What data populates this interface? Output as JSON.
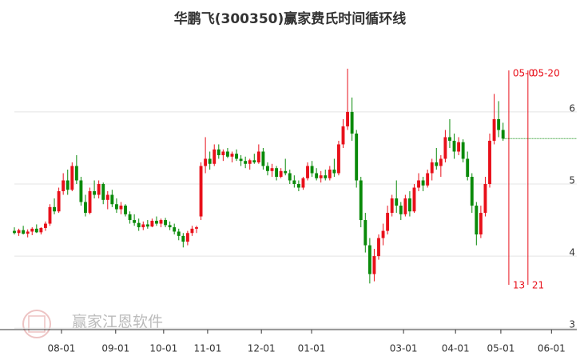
{
  "chart_data": {
    "type": "candlestick",
    "title": "华鹏飞(300350)赢家费氏时间循环线",
    "watermark": "赢家江恩软件",
    "up_color": "#e8101a",
    "down_color": "#0a8a0a",
    "ylim": [
      2.98,
      7.22
    ],
    "yticks": [
      3,
      4,
      5,
      6
    ],
    "xlim": [
      0,
      126.6
    ],
    "xticks": [
      {
        "value": 10.6,
        "label": "08-01"
      },
      {
        "value": 22.8,
        "label": "09-01"
      },
      {
        "value": 33.6,
        "label": "10-01"
      },
      {
        "value": 43.5,
        "label": "11-01"
      },
      {
        "value": 55.6,
        "label": "12-01"
      },
      {
        "value": 66.9,
        "label": "01-01"
      },
      {
        "value": 87.6,
        "label": "03-01"
      },
      {
        "value": 99.3,
        "label": "04-01"
      },
      {
        "value": 109.5,
        "label": "05-01"
      },
      {
        "value": 120.9,
        "label": "06-01"
      }
    ],
    "current_price": 5.63,
    "cycle_lines": [
      {
        "x": 111.3,
        "count": "13",
        "date": "05-0"
      },
      {
        "x": 115.6,
        "count": "21",
        "date": "05-20"
      }
    ],
    "ohlc": [
      [
        4.35,
        4.4,
        4.3,
        4.32
      ],
      [
        4.32,
        4.38,
        4.28,
        4.36
      ],
      [
        4.36,
        4.42,
        4.3,
        4.31
      ],
      [
        4.31,
        4.37,
        4.26,
        4.34
      ],
      [
        4.34,
        4.4,
        4.29,
        4.38
      ],
      [
        4.38,
        4.44,
        4.32,
        4.33
      ],
      [
        4.33,
        4.4,
        4.3,
        4.39
      ],
      [
        4.39,
        4.48,
        4.35,
        4.45
      ],
      [
        4.45,
        4.72,
        4.42,
        4.68
      ],
      [
        4.68,
        4.8,
        4.58,
        4.62
      ],
      [
        4.62,
        4.95,
        4.6,
        4.9
      ],
      [
        4.9,
        5.15,
        4.85,
        5.05
      ],
      [
        5.05,
        5.2,
        4.85,
        4.92
      ],
      [
        4.92,
        5.3,
        4.9,
        5.25
      ],
      [
        5.25,
        5.4,
        5.0,
        5.05
      ],
      [
        5.05,
        5.1,
        4.7,
        4.75
      ],
      [
        4.75,
        4.85,
        4.55,
        4.6
      ],
      [
        4.6,
        4.95,
        4.58,
        4.9
      ],
      [
        4.9,
        5.05,
        4.8,
        4.85
      ],
      [
        4.85,
        5.05,
        4.8,
        5.0
      ],
      [
        5.0,
        5.02,
        4.72,
        4.78
      ],
      [
        4.78,
        4.9,
        4.65,
        4.85
      ],
      [
        4.85,
        4.92,
        4.68,
        4.72
      ],
      [
        4.72,
        4.8,
        4.6,
        4.65
      ],
      [
        4.65,
        4.75,
        4.58,
        4.7
      ],
      [
        4.7,
        4.72,
        4.55,
        4.58
      ],
      [
        4.58,
        4.62,
        4.45,
        4.5
      ],
      [
        4.5,
        4.58,
        4.42,
        4.46
      ],
      [
        4.46,
        4.52,
        4.35,
        4.4
      ],
      [
        4.4,
        4.48,
        4.36,
        4.44
      ],
      [
        4.44,
        4.5,
        4.38,
        4.41
      ],
      [
        4.41,
        4.52,
        4.4,
        4.49
      ],
      [
        4.49,
        4.55,
        4.42,
        4.45
      ],
      [
        4.45,
        4.52,
        4.4,
        4.5
      ],
      [
        4.5,
        4.53,
        4.4,
        4.43
      ],
      [
        4.43,
        4.48,
        4.36,
        4.4
      ],
      [
        4.4,
        4.45,
        4.3,
        4.34
      ],
      [
        4.34,
        4.38,
        4.22,
        4.28
      ],
      [
        4.28,
        4.32,
        4.12,
        4.2
      ],
      [
        4.2,
        4.35,
        4.15,
        4.32
      ],
      [
        4.32,
        4.42,
        4.28,
        4.38
      ],
      [
        4.38,
        4.42,
        4.32,
        4.4
      ],
      [
        4.55,
        5.3,
        4.5,
        5.25
      ],
      [
        5.25,
        5.65,
        5.15,
        5.35
      ],
      [
        5.35,
        5.45,
        5.2,
        5.28
      ],
      [
        5.28,
        5.55,
        5.25,
        5.48
      ],
      [
        5.48,
        5.55,
        5.35,
        5.4
      ],
      [
        5.4,
        5.48,
        5.32,
        5.45
      ],
      [
        5.45,
        5.5,
        5.36,
        5.38
      ],
      [
        5.38,
        5.45,
        5.3,
        5.42
      ],
      [
        5.42,
        5.48,
        5.32,
        5.35
      ],
      [
        5.35,
        5.4,
        5.25,
        5.32
      ],
      [
        5.32,
        5.38,
        5.22,
        5.28
      ],
      [
        5.28,
        5.35,
        5.2,
        5.33
      ],
      [
        5.33,
        5.42,
        5.28,
        5.3
      ],
      [
        5.3,
        5.55,
        5.28,
        5.45
      ],
      [
        5.45,
        5.5,
        5.2,
        5.25
      ],
      [
        5.25,
        5.3,
        5.12,
        5.18
      ],
      [
        5.18,
        5.28,
        5.1,
        5.22
      ],
      [
        5.22,
        5.25,
        5.05,
        5.1
      ],
      [
        5.1,
        5.22,
        5.08,
        5.18
      ],
      [
        5.18,
        5.35,
        5.12,
        5.15
      ],
      [
        5.15,
        5.2,
        5.0,
        5.05
      ],
      [
        5.05,
        5.12,
        4.95,
        5.0
      ],
      [
        5.0,
        5.05,
        4.9,
        4.95
      ],
      [
        4.95,
        5.1,
        4.92,
        5.08
      ],
      [
        5.08,
        5.3,
        5.05,
        5.25
      ],
      [
        5.25,
        5.32,
        5.1,
        5.15
      ],
      [
        5.15,
        5.22,
        5.05,
        5.08
      ],
      [
        5.08,
        5.18,
        5.02,
        5.12
      ],
      [
        5.12,
        5.2,
        5.05,
        5.08
      ],
      [
        5.08,
        5.25,
        5.05,
        5.2
      ],
      [
        5.2,
        5.35,
        5.1,
        5.15
      ],
      [
        5.15,
        5.6,
        5.12,
        5.55
      ],
      [
        5.55,
        5.9,
        5.5,
        5.8
      ],
      [
        5.8,
        6.6,
        5.75,
        6.0
      ],
      [
        6.0,
        6.2,
        5.6,
        5.7
      ],
      [
        5.7,
        5.75,
        4.95,
        5.05
      ],
      [
        5.05,
        5.1,
        4.4,
        4.5
      ],
      [
        4.5,
        4.6,
        4.05,
        4.15
      ],
      [
        4.15,
        4.25,
        3.62,
        3.75
      ],
      [
        3.75,
        4.1,
        3.65,
        4.0
      ],
      [
        4.0,
        4.3,
        3.95,
        4.25
      ],
      [
        4.25,
        4.45,
        4.15,
        4.35
      ],
      [
        4.35,
        4.7,
        4.3,
        4.6
      ],
      [
        4.6,
        4.85,
        4.55,
        4.8
      ],
      [
        4.8,
        5.05,
        4.6,
        4.7
      ],
      [
        4.7,
        4.75,
        4.5,
        4.58
      ],
      [
        4.58,
        4.85,
        4.55,
        4.8
      ],
      [
        4.8,
        4.9,
        4.55,
        4.62
      ],
      [
        4.62,
        5.0,
        4.6,
        4.95
      ],
      [
        4.95,
        5.15,
        4.9,
        5.05
      ],
      [
        5.05,
        5.1,
        4.9,
        4.98
      ],
      [
        4.98,
        5.2,
        4.95,
        5.15
      ],
      [
        5.15,
        5.35,
        5.05,
        5.3
      ],
      [
        5.3,
        5.5,
        5.2,
        5.25
      ],
      [
        5.25,
        5.4,
        5.1,
        5.35
      ],
      [
        5.35,
        5.75,
        5.3,
        5.65
      ],
      [
        5.65,
        5.9,
        5.5,
        5.6
      ],
      [
        5.6,
        5.7,
        5.35,
        5.45
      ],
      [
        5.45,
        5.65,
        5.4,
        5.58
      ],
      [
        5.58,
        5.62,
        5.3,
        5.35
      ],
      [
        5.35,
        5.45,
        5.05,
        5.1
      ],
      [
        5.1,
        5.15,
        4.6,
        4.7
      ],
      [
        4.7,
        4.75,
        4.15,
        4.3
      ],
      [
        4.3,
        4.7,
        4.25,
        4.6
      ],
      [
        4.6,
        5.1,
        4.55,
        5.0
      ],
      [
        5.0,
        5.7,
        4.95,
        5.6
      ],
      [
        5.6,
        6.25,
        5.55,
        5.9
      ],
      [
        5.9,
        6.15,
        5.65,
        5.75
      ],
      [
        5.75,
        5.85,
        5.6,
        5.63
      ]
    ]
  }
}
